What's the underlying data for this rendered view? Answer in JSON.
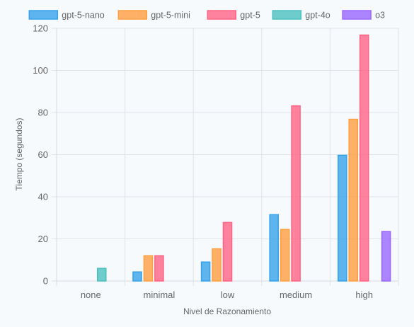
{
  "chart_data": {
    "type": "bar",
    "title": "",
    "xlabel": "Nivel de Razonamiento",
    "ylabel": "Tiempo (segundos)",
    "ylim": [
      0,
      120
    ],
    "yticks": [
      0,
      20,
      40,
      60,
      80,
      100,
      120
    ],
    "grid": true,
    "legend_position": "top",
    "categories": [
      "none",
      "minimal",
      "low",
      "medium",
      "high"
    ],
    "series": [
      {
        "name": "gpt-5-nano",
        "color": "#36a2eb",
        "values": [
          null,
          4.3,
          9.0,
          31.5,
          59.7
        ]
      },
      {
        "name": "gpt-5-mini",
        "color": "#ff9f40",
        "values": [
          null,
          12.0,
          15.3,
          24.5,
          76.8
        ]
      },
      {
        "name": "gpt-5",
        "color": "#ff6384",
        "values": [
          null,
          12.0,
          27.8,
          83.2,
          116.8
        ]
      },
      {
        "name": "gpt-4o",
        "color": "#4bc0c0",
        "values": [
          6.0,
          null,
          null,
          null,
          null
        ]
      },
      {
        "name": "o3",
        "color": "#9966ff",
        "values": [
          null,
          null,
          null,
          null,
          23.5
        ]
      }
    ]
  }
}
